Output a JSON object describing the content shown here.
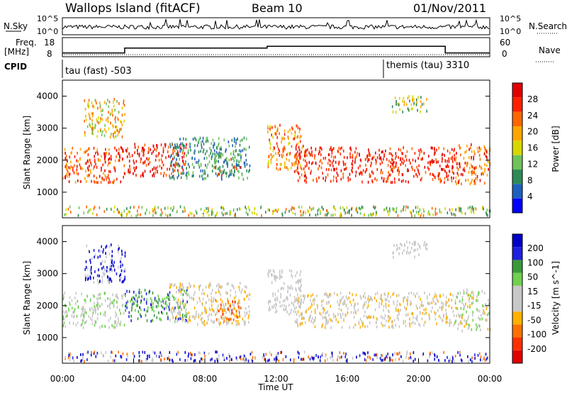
{
  "header": {
    "site": "Wallops Island (fitACF)",
    "beam": "Beam 10",
    "date": "01/Nov/2011"
  },
  "left_labels": {
    "nsky": "N.Sky",
    "freq": "Freq.",
    "freq_unit": "[MHz]",
    "cpid": "CPID"
  },
  "right_labels": {
    "nsearch": "N.Search",
    "nave": "Nave"
  },
  "cpid_segments": [
    {
      "text": "tau (fast) -503",
      "start_hour": 0
    },
    {
      "text": "themis (tau) 3310",
      "start_hour": 18
    }
  ],
  "colors": {
    "power_scale": [
      "#0000ff",
      "#1f5fbf",
      "#2e8b57",
      "#6fc35a",
      "#d7d700",
      "#ffa500",
      "#ff6600",
      "#ff2000",
      "#e00000"
    ],
    "velocity_scale": [
      "#0000c8",
      "#2020e0",
      "#3a9a3a",
      "#70d050",
      "#c8c8c8",
      "#c8c8c8",
      "#ffb000",
      "#ff7000",
      "#ff3000",
      "#e00000"
    ]
  },
  "chart_data": [
    {
      "type": "line",
      "title": "N.Sky",
      "x": [
        0,
        1,
        2,
        3,
        4,
        5,
        6,
        7,
        8,
        9,
        10,
        11,
        12,
        13,
        14,
        15,
        16,
        17,
        18,
        19,
        20,
        21,
        22,
        23,
        24
      ],
      "yticks": [
        "10^5",
        "10^0"
      ],
      "right_yticks": [
        "10^5",
        "10^0"
      ]
    },
    {
      "type": "line",
      "title": "Freq. [MHz] / Nave",
      "series": [
        {
          "name": "Freq.",
          "x": [
            0,
            3.5,
            3.5,
            11.5,
            11.5,
            21.5,
            21.5,
            24
          ],
          "y": [
            10,
            10,
            12.5,
            12.5,
            13.5,
            13.5,
            10,
            10
          ]
        }
      ],
      "ylim": [
        8,
        18
      ],
      "yticks": [
        "18",
        "8"
      ],
      "right_yticks": [
        "60",
        "0"
      ]
    },
    {
      "type": "heatmap",
      "title": "Power",
      "ylabel": "Slant Range [km]",
      "xlabel": "",
      "yticks": [
        "1000",
        "2000",
        "3000",
        "4000"
      ],
      "ylim": [
        200,
        4500
      ],
      "xlim": [
        0,
        24
      ],
      "colorbar": {
        "label": "Power [dB]",
        "ticks": [
          "4",
          "8",
          "12",
          "16",
          "20",
          "24",
          "28"
        ]
      }
    },
    {
      "type": "heatmap",
      "title": "Velocity",
      "ylabel": "Slant Range [km]",
      "xlabel": "Time UT",
      "xticks": [
        "00:00",
        "04:00",
        "08:00",
        "12:00",
        "16:00",
        "20:00",
        "00:00"
      ],
      "yticks": [
        "1000",
        "2000",
        "3000",
        "4000"
      ],
      "ylim": [
        200,
        4500
      ],
      "xlim": [
        0,
        24
      ],
      "colorbar": {
        "label": "Velocity [m s^-1]",
        "ticks": [
          "200",
          "100",
          "50",
          "15",
          "-15",
          "-50",
          "-100",
          "-200"
        ]
      }
    }
  ]
}
